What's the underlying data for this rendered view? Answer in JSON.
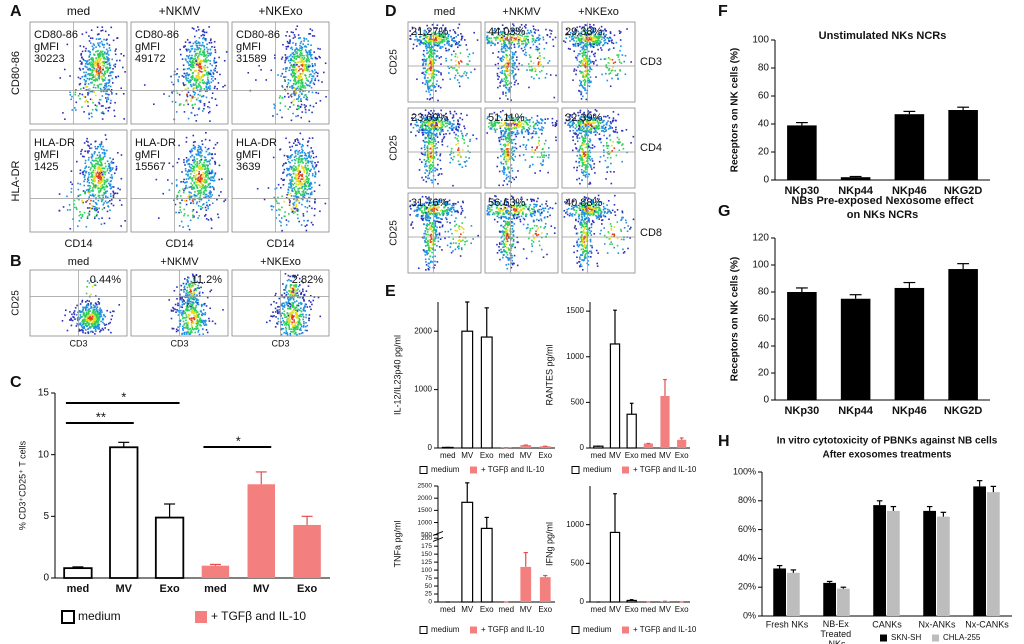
{
  "panels": [
    "A",
    "B",
    "C",
    "D",
    "E",
    "F",
    "G",
    "H"
  ],
  "flow_A": {
    "columns": [
      "med",
      "+NKMV",
      "+NKExo"
    ],
    "xlabel": "CD14",
    "rows": [
      {
        "ylabel": "CD80-86",
        "cells": [
          [
            "CD80-86",
            "gMFI",
            "30223"
          ],
          [
            "CD80-86",
            "gMFI",
            "49172"
          ],
          [
            "CD80-86",
            "gMFI",
            "31589"
          ]
        ]
      },
      {
        "ylabel": "HLA-DR",
        "cells": [
          [
            "HLA-DR",
            "gMFI",
            "1425"
          ],
          [
            "HLA-DR",
            "gMFI",
            "15567"
          ],
          [
            "HLA-DR",
            "gMFI",
            "3639"
          ]
        ]
      }
    ]
  },
  "flow_B": {
    "columns": [
      "med",
      "+NKMV",
      "+NKExo"
    ],
    "ylabel": "CD25",
    "xlabel": "CD3",
    "percents": [
      "0.44%",
      "11.2%",
      "2.82%"
    ]
  },
  "flow_D": {
    "columns": [
      "med",
      "+NKMV",
      "+NKExo"
    ],
    "ylabel": "CD25",
    "rows": [
      {
        "label": "CD3",
        "percents": [
          "21.27%",
          "44.03%",
          "29.38%"
        ]
      },
      {
        "label": "CD4",
        "percents": [
          "23.69%",
          "51.11%",
          "32.39%"
        ]
      },
      {
        "label": "CD8",
        "percents": [
          "31.76%",
          "56.63%",
          "40.88%"
        ]
      }
    ]
  },
  "chart_data": [
    {
      "type": "bar",
      "ylabel": "% CD3⁺CD25⁺ T cells",
      "categories": [
        "med",
        "MV",
        "Exo",
        "med",
        "MV",
        "Exo"
      ],
      "ylim": [
        0,
        15
      ],
      "yticks": [
        0,
        5,
        10,
        15
      ],
      "series": [
        {
          "name": "medium",
          "color": "#ffffff",
          "values": [
            0.8,
            10.6,
            4.9,
            null,
            null,
            null
          ],
          "errors": [
            0.1,
            0.4,
            1.1,
            null,
            null,
            null
          ]
        },
        {
          "name": "+ TGFβ and IL-10",
          "color": "#f47f7f",
          "values": [
            null,
            null,
            null,
            1.0,
            7.6,
            4.3
          ],
          "errors": [
            null,
            null,
            null,
            0.1,
            1.0,
            0.7
          ]
        }
      ],
      "annotations": [
        "**",
        "*",
        "*"
      ]
    },
    {
      "type": "bar",
      "ylabel": "IL-12/IL23p40 pg/ml",
      "categories": [
        "med",
        "MV",
        "Exo",
        "med",
        "MV",
        "Exo"
      ],
      "ylim": [
        0,
        2500
      ],
      "yticks": [
        0,
        1000,
        2000
      ],
      "series": [
        {
          "name": "medium",
          "color": "#ffffff",
          "values": [
            10,
            2000,
            1900,
            null,
            null,
            null
          ],
          "errors": [
            0,
            500,
            500,
            null,
            null,
            null
          ]
        },
        {
          "name": "+ TGFβ and IL-10",
          "color": "#f47f7f",
          "values": [
            null,
            null,
            null,
            5,
            50,
            30
          ],
          "errors": [
            null,
            null,
            null,
            0,
            0,
            0
          ]
        }
      ]
    },
    {
      "type": "bar",
      "ylabel": "RANTES pg/ml",
      "categories": [
        "med",
        "MV",
        "Exo",
        "med",
        "MV",
        "Exo"
      ],
      "ylim": [
        0,
        1600
      ],
      "yticks": [
        0,
        500,
        1000,
        1500
      ],
      "series": [
        {
          "name": "medium",
          "color": "#ffffff",
          "values": [
            20,
            1140,
            370,
            null,
            null,
            null
          ],
          "errors": [
            0,
            370,
            120,
            null,
            null,
            null
          ]
        },
        {
          "name": "+ TGFβ and IL-10",
          "color": "#f47f7f",
          "values": [
            null,
            null,
            null,
            50,
            570,
            90
          ],
          "errors": [
            null,
            null,
            null,
            0,
            180,
            20
          ]
        }
      ]
    },
    {
      "type": "bar",
      "ylabel": "TNFa pg/ml",
      "categories": [
        "med",
        "MV",
        "Exo",
        "med",
        "MV",
        "Exo"
      ],
      "ylim": [
        0,
        2500
      ],
      "ybreak": [
        200,
        500
      ],
      "yticks": [
        0,
        25,
        50,
        75,
        100,
        125,
        150,
        175,
        200,
        500,
        1000,
        1500,
        2000,
        2500
      ],
      "series": [
        {
          "name": "medium",
          "color": "#ffffff",
          "values": [
            0,
            1830,
            760,
            null,
            null,
            null
          ],
          "errors": [
            0,
            800,
            450,
            null,
            null,
            null
          ]
        },
        {
          "name": "+ TGFβ and IL-10",
          "color": "#f47f7f",
          "values": [
            null,
            null,
            null,
            0,
            110,
            78
          ],
          "errors": [
            null,
            null,
            null,
            0,
            45,
            5
          ]
        }
      ]
    },
    {
      "type": "bar",
      "ylabel": "IFNg pg/ml",
      "categories": [
        "med",
        "MV",
        "Exo",
        "med",
        "MV",
        "Exo"
      ],
      "ylim": [
        0,
        1500
      ],
      "yticks": [
        0,
        500,
        1000
      ],
      "series": [
        {
          "name": "medium",
          "color": "#ffffff",
          "values": [
            0,
            900,
            20,
            null,
            null,
            null
          ],
          "errors": [
            0,
            500,
            10,
            null,
            null,
            null
          ]
        },
        {
          "name": "+ TGFβ and IL-10",
          "color": "#f47f7f",
          "values": [
            null,
            null,
            null,
            0,
            10,
            0
          ],
          "errors": [
            null,
            null,
            null,
            0,
            0,
            0
          ]
        }
      ]
    },
    {
      "type": "bar",
      "title": "Unstimulated NKs NCRs",
      "ylabel": "Receptors on NK cells (%)",
      "categories": [
        "NKp30",
        "NKp44",
        "NKp46",
        "NKG2D"
      ],
      "values": [
        39,
        2,
        47,
        50
      ],
      "errors": [
        2,
        0.5,
        2,
        2
      ],
      "color": "#000000",
      "ylim": [
        0,
        100
      ],
      "yticks": [
        0,
        20,
        40,
        60,
        80,
        100
      ]
    },
    {
      "type": "bar",
      "title": [
        "NBs Pre-exposed Nexosome effect",
        "on NKs NCRs"
      ],
      "ylabel": "Receptors on NK cells (%)",
      "categories": [
        "NKp30",
        "NKp44",
        "NKp46",
        "NKG2D"
      ],
      "values": [
        80,
        75,
        83,
        97
      ],
      "errors": [
        3,
        3,
        4,
        4
      ],
      "color": "#000000",
      "ylim": [
        0,
        120
      ],
      "yticks": [
        0,
        20,
        40,
        60,
        80,
        100,
        120
      ]
    },
    {
      "type": "bar",
      "title": [
        "In vitro cytotoxicity of PBNKs against NB cells",
        "After exosomes treatments"
      ],
      "categories": [
        "Fresh NKs",
        "NB-Ex Treated NKs",
        "CANKs",
        "Nx-ANKs",
        "Nx-CANKs"
      ],
      "ylim": [
        0,
        100
      ],
      "yticks": [
        {
          "value": 0,
          "label": "0%"
        },
        {
          "value": 20,
          "label": "20%"
        },
        {
          "value": 40,
          "label": "40%"
        },
        {
          "value": 60,
          "label": "60%"
        },
        {
          "value": 80,
          "label": "80%"
        },
        {
          "value": 100,
          "label": "100%"
        }
      ],
      "series": [
        {
          "name": "SKN-SH",
          "color": "#000000",
          "values": [
            33,
            23,
            77,
            73,
            90
          ],
          "errors": [
            2,
            1,
            3,
            3,
            4
          ]
        },
        {
          "name": "CHLA-255",
          "color": "#bdbdbd",
          "values": [
            30,
            19,
            73,
            69,
            86
          ],
          "errors": [
            2,
            1,
            3,
            3,
            4
          ]
        }
      ]
    }
  ]
}
